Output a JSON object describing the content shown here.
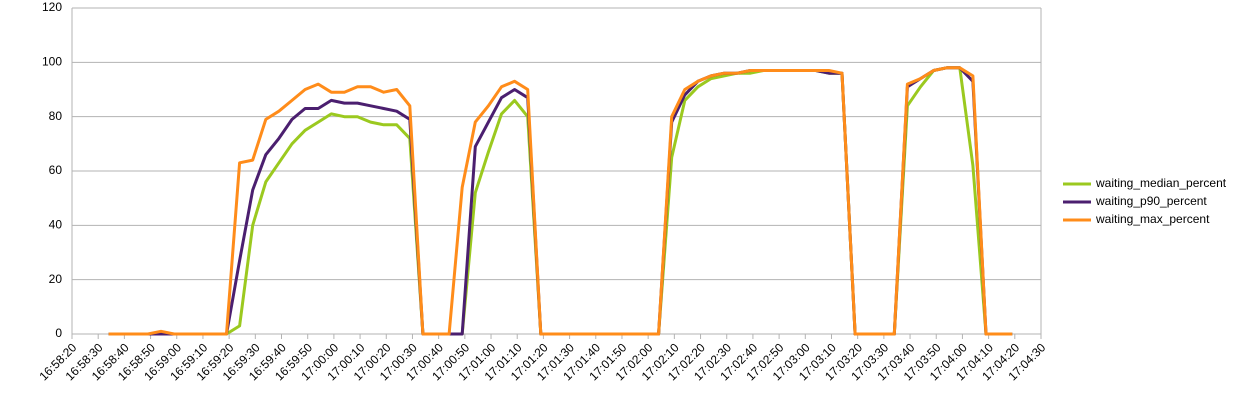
{
  "chart_data": {
    "type": "line",
    "x": [
      "16:58:34",
      "16:58:39",
      "16:58:44",
      "16:58:49",
      "16:58:54",
      "16:58:59",
      "16:59:04",
      "16:59:09",
      "16:59:14",
      "16:59:19",
      "16:59:24",
      "16:59:29",
      "16:59:34",
      "16:59:39",
      "16:59:44",
      "16:59:49",
      "16:59:54",
      "16:59:59",
      "17:00:04",
      "17:00:09",
      "17:00:14",
      "17:00:19",
      "17:00:24",
      "17:00:29",
      "17:00:34",
      "17:00:39",
      "17:00:44",
      "17:00:49",
      "17:00:54",
      "17:00:59",
      "17:01:04",
      "17:01:09",
      "17:01:14",
      "17:01:19",
      "17:01:24",
      "17:01:29",
      "17:01:34",
      "17:01:39",
      "17:01:44",
      "17:01:49",
      "17:01:54",
      "17:01:59",
      "17:02:04",
      "17:02:09",
      "17:02:14",
      "17:02:19",
      "17:02:24",
      "17:02:29",
      "17:02:34",
      "17:02:39",
      "17:02:44",
      "17:02:49",
      "17:02:54",
      "17:02:59",
      "17:03:04",
      "17:03:09",
      "17:03:14",
      "17:03:19",
      "17:03:24",
      "17:03:29",
      "17:03:34",
      "17:03:39",
      "17:03:44",
      "17:03:49",
      "17:03:54",
      "17:03:59",
      "17:04:04",
      "17:04:09",
      "17:04:14",
      "17:04:19"
    ],
    "series": [
      {
        "name": "waiting_median_percent",
        "color": "#9bc91f",
        "values": [
          0,
          0,
          0,
          0,
          0,
          0,
          0,
          0,
          0,
          0,
          3,
          40,
          56,
          63,
          70,
          75,
          78,
          81,
          80,
          80,
          78,
          77,
          77,
          72,
          0,
          0,
          0,
          0,
          52,
          67,
          81,
          86,
          80,
          0,
          0,
          0,
          0,
          0,
          0,
          0,
          0,
          0,
          0,
          65,
          86,
          91,
          94,
          95,
          96,
          96,
          97,
          97,
          97,
          97,
          97,
          96,
          96,
          0,
          0,
          0,
          0,
          84,
          91,
          97,
          98,
          98,
          62,
          0,
          0,
          0
        ]
      },
      {
        "name": "waiting_p90_percent",
        "color": "#4b1f6f",
        "values": [
          0,
          0,
          0,
          0,
          0,
          0,
          0,
          0,
          0,
          0,
          27,
          53,
          66,
          72,
          79,
          83,
          83,
          86,
          85,
          85,
          84,
          83,
          82,
          79,
          0,
          0,
          0,
          0,
          69,
          78,
          87,
          90,
          87,
          0,
          0,
          0,
          0,
          0,
          0,
          0,
          0,
          0,
          0,
          78,
          88,
          93,
          95,
          96,
          96,
          97,
          97,
          97,
          97,
          97,
          97,
          96,
          96,
          0,
          0,
          0,
          0,
          91,
          94,
          97,
          98,
          98,
          93,
          0,
          0,
          0
        ]
      },
      {
        "name": "waiting_max_percent",
        "color": "#ff8c1a",
        "values": [
          0,
          0,
          0,
          0,
          1,
          0,
          0,
          0,
          0,
          0,
          63,
          64,
          79,
          82,
          86,
          90,
          92,
          89,
          89,
          91,
          91,
          89,
          90,
          84,
          0,
          0,
          0,
          54,
          78,
          84,
          91,
          93,
          90,
          0,
          0,
          0,
          0,
          0,
          0,
          0,
          0,
          0,
          0,
          80,
          90,
          93,
          95,
          96,
          96,
          97,
          97,
          97,
          97,
          97,
          97,
          97,
          96,
          0,
          0,
          0,
          0,
          92,
          94,
          97,
          98,
          98,
          95,
          0,
          0,
          0
        ]
      }
    ],
    "xlim": [
      "16:58:20",
      "17:04:30"
    ],
    "xticks": [
      "16:58:20",
      "16:58:30",
      "16:58:40",
      "16:58:50",
      "16:59:00",
      "16:59:10",
      "16:59:20",
      "16:59:30",
      "16:59:40",
      "16:59:50",
      "17:00:00",
      "17:00:10",
      "17:00:20",
      "17:00:30",
      "17:00:40",
      "17:00:50",
      "17:01:00",
      "17:01:10",
      "17:01:20",
      "17:01:30",
      "17:01:40",
      "17:01:50",
      "17:02:00",
      "17:02:10",
      "17:02:20",
      "17:02:30",
      "17:02:40",
      "17:02:50",
      "17:03:00",
      "17:03:10",
      "17:03:20",
      "17:03:30",
      "17:03:40",
      "17:03:50",
      "17:04:00",
      "17:04:10",
      "17:04:20",
      "17:04:30"
    ],
    "ylim": [
      0,
      120
    ],
    "yticks": [
      0,
      20,
      40,
      60,
      80,
      100,
      120
    ],
    "grid": true,
    "legend": "right"
  }
}
